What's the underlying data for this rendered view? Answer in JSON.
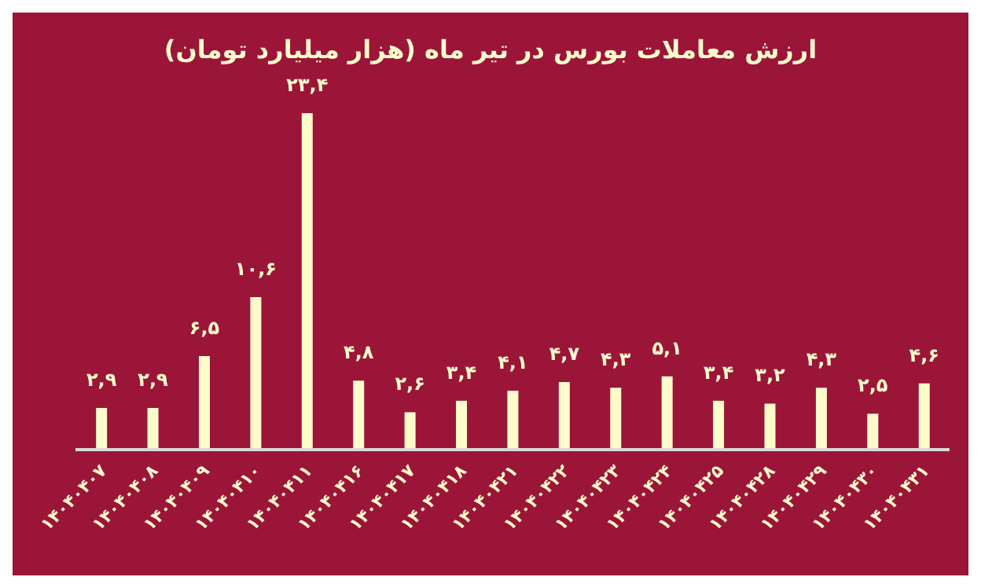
{
  "chart_data": {
    "type": "bar",
    "title": "ارزش معاملات بورس در تیر ماه (هزار میلیارد تومان)",
    "categories": [
      "۱۴۰۴۰۴۰۷",
      "۱۴۰۴۰۴۰۸",
      "۱۴۰۴۰۴۰۹",
      "۱۴۰۴۰۴۱۰",
      "۱۴۰۴۰۴۱۱",
      "۱۴۰۴۰۴۱۶",
      "۱۴۰۴۰۴۱۷",
      "۱۴۰۴۰۴۱۸",
      "۱۴۰۴۰۴۲۱",
      "۱۴۰۴۰۴۲۲",
      "۱۴۰۴۰۴۲۳",
      "۱۴۰۴۰۴۲۴",
      "۱۴۰۴۰۴۲۵",
      "۱۴۰۴۰۴۲۸",
      "۱۴۰۴۰۴۲۹",
      "۱۴۰۴۰۴۳۰",
      "۱۴۰۴۰۴۳۱"
    ],
    "values": [
      2.9,
      2.9,
      6.5,
      10.6,
      23.4,
      4.8,
      2.6,
      3.4,
      4.1,
      4.7,
      4.3,
      5.1,
      3.4,
      3.2,
      4.3,
      2.5,
      4.6
    ],
    "value_labels": [
      "۲,۹",
      "۲,۹",
      "۶,۵",
      "۱۰,۶",
      "۲۳,۴",
      "۴,۸",
      "۲,۶",
      "۳,۴",
      "۴,۱",
      "۴,۷",
      "۴,۳",
      "۵,۱",
      "۳,۴",
      "۳,۲",
      "۴,۳",
      "۲,۵",
      "۴,۶"
    ],
    "color": "#fffccc",
    "grid": false,
    "legend": false,
    "tick_labels": "x"
  }
}
